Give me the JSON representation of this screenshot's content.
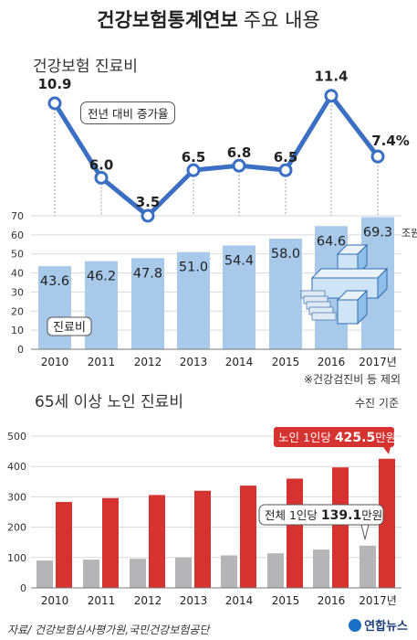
{
  "title": {
    "bold": "건강보험통계연보",
    "rest": "주요 내용"
  },
  "chart_data": [
    {
      "type": "line",
      "title": "",
      "annotation": "전년 대비 증가율",
      "x": [
        "2010",
        "2011",
        "2012",
        "2013",
        "2014",
        "2015",
        "2016",
        "2017년"
      ],
      "values": [
        10.9,
        6.0,
        3.5,
        6.5,
        6.8,
        6.5,
        11.4,
        7.4
      ],
      "labels": [
        "10.9",
        "6.0",
        "3.5",
        "6.5",
        "6.8",
        "6.5",
        "11.4",
        "7.4%"
      ],
      "ylim": [
        2,
        13
      ],
      "color": "#3a6fc4"
    },
    {
      "type": "bar",
      "title": "건강보험 진료비",
      "categories": [
        "2010",
        "2011",
        "2012",
        "2013",
        "2014",
        "2015",
        "2016",
        "2017년"
      ],
      "values": [
        43.6,
        46.2,
        47.8,
        51.0,
        54.4,
        58.0,
        64.6,
        69.3
      ],
      "labels": [
        "43.6",
        "46.2",
        "47.8",
        "51.0",
        "54.4",
        "58.0",
        "64.6",
        "69.3"
      ],
      "unit_label": "조원",
      "series_label": "진료비",
      "yticks": [
        0,
        10,
        20,
        30,
        40,
        50,
        60,
        70
      ],
      "ylim": [
        0,
        70
      ],
      "color": "#a8c9ea",
      "note": "※건강검진비 등 제외"
    },
    {
      "type": "bar",
      "title": "65세 이상 노인 진료비",
      "unit_note": "수진 기준",
      "categories": [
        "2010",
        "2011",
        "2012",
        "2013",
        "2014",
        "2015",
        "2016",
        "2017년"
      ],
      "series": [
        {
          "name": "전체 1인당",
          "values": [
            90,
            93,
            96,
            100,
            107,
            114,
            126,
            139.1
          ],
          "color": "#b5b5b8"
        },
        {
          "name": "노인 1인당",
          "values": [
            283,
            296,
            306,
            320,
            337,
            360,
            397,
            425.5
          ],
          "color": "#d6322f"
        }
      ],
      "callouts": [
        {
          "prefix": "노인 1인당",
          "value": "425.5",
          "suffix": "만원"
        },
        {
          "prefix": "전체 1인당",
          "value": "139.1",
          "suffix": "만원"
        }
      ],
      "yticks": [
        0,
        100,
        200,
        300,
        400,
        500
      ],
      "ylim": [
        0,
        500
      ]
    }
  ],
  "source": "자료/ 건강보험심사평가원,국민건강보험공단",
  "logo": "연합뉴스"
}
